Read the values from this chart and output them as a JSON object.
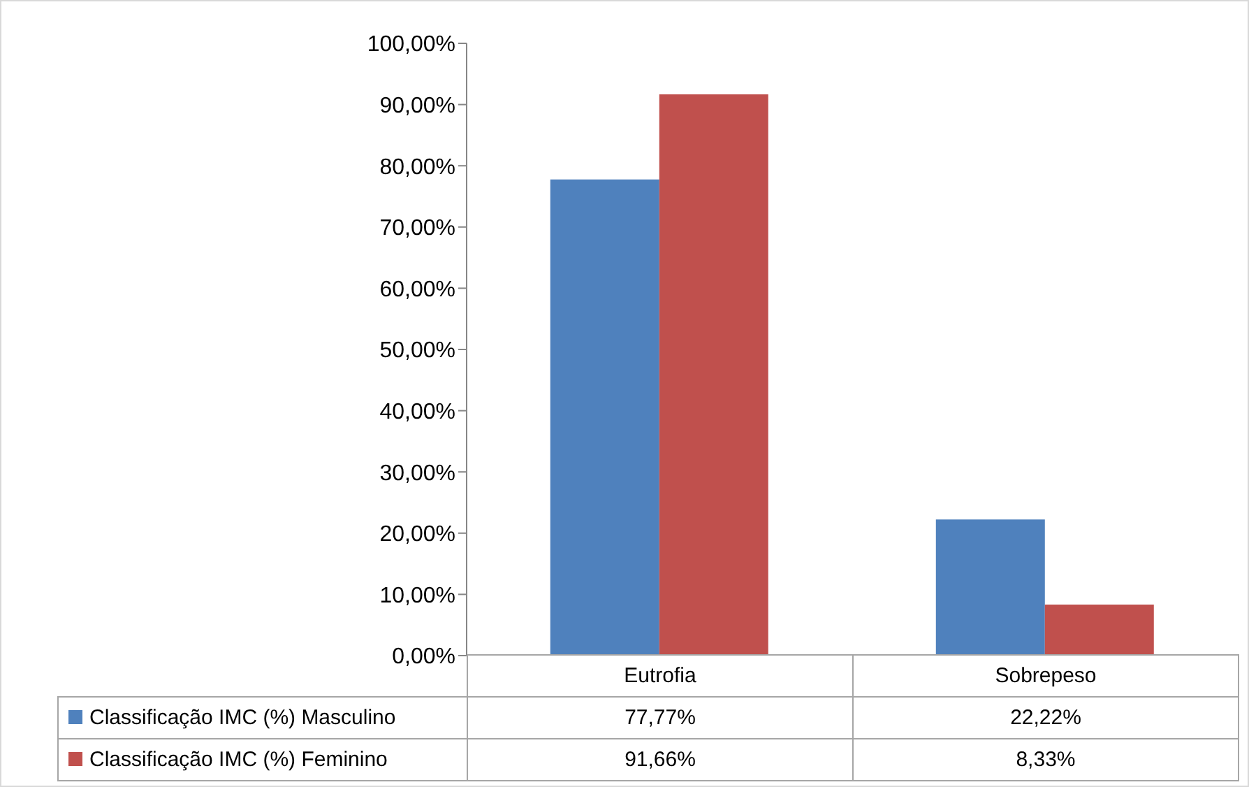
{
  "chart_data": {
    "type": "bar",
    "categories": [
      "Eutrofia",
      "Sobrepeso"
    ],
    "series": [
      {
        "name": "Classificação IMC (%) Masculino",
        "color": "#4f81bd",
        "values": [
          77.77,
          22.22
        ],
        "value_labels": [
          "77,77%",
          "22,22%"
        ]
      },
      {
        "name": "Classificação IMC (%) Feminino",
        "color": "#c0504d",
        "values": [
          91.66,
          8.33
        ],
        "value_labels": [
          "91,66%",
          "8,33%"
        ]
      }
    ],
    "ylim": [
      0,
      100
    ],
    "yticks": [
      {
        "value": 0,
        "label": "0,00%"
      },
      {
        "value": 10,
        "label": "10,00%"
      },
      {
        "value": 20,
        "label": "20,00%"
      },
      {
        "value": 30,
        "label": "30,00%"
      },
      {
        "value": 40,
        "label": "40,00%"
      },
      {
        "value": 50,
        "label": "50,00%"
      },
      {
        "value": 60,
        "label": "60,00%"
      },
      {
        "value": 70,
        "label": "70,00%"
      },
      {
        "value": 80,
        "label": "80,00%"
      },
      {
        "value": 90,
        "label": "90,00%"
      },
      {
        "value": 100,
        "label": "100,00%"
      }
    ],
    "grid": false,
    "legend": "bottom"
  }
}
